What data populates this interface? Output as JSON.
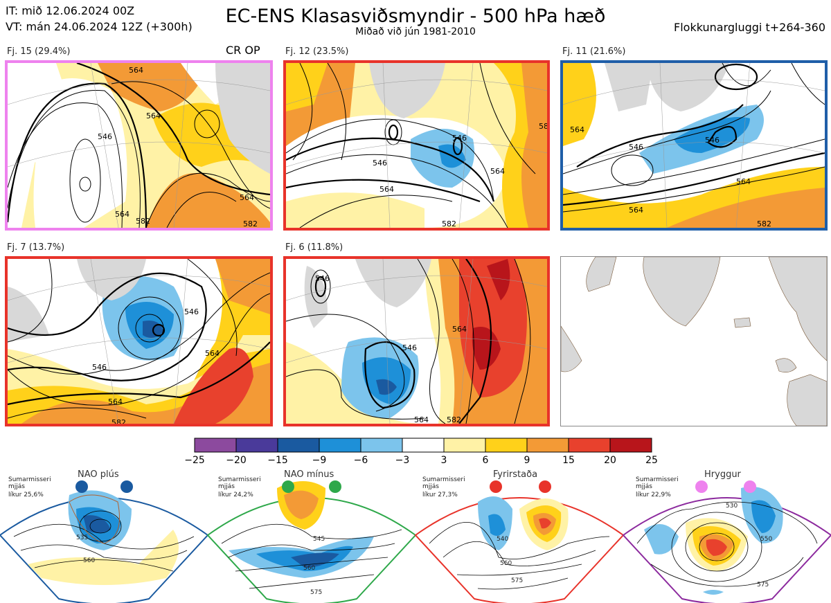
{
  "header": {
    "it_line": "IT: mið 12.06.2024 00Z",
    "vt_line": "VT: mán 24.06.2024 12Z  (+300h)",
    "title": "EC-ENS Klasasviðsmyndir - 500 hPa hæð",
    "subtitle": "Miðað við jún 1981-2010",
    "window": "Flokkunargluggi t+264-360"
  },
  "panels": [
    {
      "label": "Fj. 15 (29.4%)",
      "extra": "CR OP",
      "border": "#ee82ee",
      "contours": [
        "564",
        "546",
        "564",
        "564",
        "564",
        "582",
        "582"
      ]
    },
    {
      "label": "Fj. 12 (23.5%)",
      "extra": "",
      "border": "#e8332a",
      "contours": [
        "546",
        "546",
        "564",
        "564",
        "582",
        "582"
      ]
    },
    {
      "label": "Fj. 11 (21.6%)",
      "extra": "",
      "border": "#1f5ea8",
      "contours": [
        "546",
        "546",
        "564",
        "564",
        "564",
        "582"
      ]
    },
    {
      "label": "Fj. 7 (13.7%)",
      "extra": "",
      "border": "#e8332a",
      "contours": [
        "546",
        "546",
        "564",
        "564",
        "582"
      ]
    },
    {
      "label": "Fj. 6 (11.8%)",
      "extra": "",
      "border": "#e8332a",
      "contours": [
        "546",
        "546",
        "564",
        "564",
        "582"
      ]
    }
  ],
  "colorbar": {
    "ticks": [
      "−25",
      "−20",
      "−15",
      "−9",
      "−6",
      "−3",
      "3",
      "6",
      "9",
      "15",
      "20",
      "25"
    ],
    "colors": [
      "#8c4a9e",
      "#4a3a9a",
      "#1a5aa0",
      "#1e90d8",
      "#7cc4ec",
      "#ffffff",
      "#fff2a6",
      "#ffd11a",
      "#f39a36",
      "#e8412d",
      "#b8151b"
    ]
  },
  "regimes": [
    {
      "name": "NAO plús",
      "note1": "Sumarmisseri",
      "note2": "mjjás",
      "note3": "líkur 25,6%",
      "dot_color": "#1a5aa0",
      "border": "#1a5aa0",
      "contours": [
        "535",
        "560"
      ]
    },
    {
      "name": "NAO mínus",
      "note1": "Sumarmisseri",
      "note2": "mjjás",
      "note3": "líkur 24,2%",
      "dot_color": "#2ea84a",
      "border": "#2ea84a",
      "contours": [
        "545",
        "560",
        "575"
      ]
    },
    {
      "name": "Fyrirstaða",
      "note1": "Sumarmisseri",
      "note2": "mjjás",
      "note3": "líkur 27,3%",
      "dot_color": "#e8332a",
      "border": "#e8332a",
      "contours": [
        "540",
        "560",
        "575"
      ]
    },
    {
      "name": "Hryggur",
      "note1": "Sumarmisseri",
      "note2": "mjjás",
      "note3": "líkur 22,9%",
      "dot_color": "#ee82ee",
      "border": "#8c2a9e",
      "contours": [
        "530",
        "550",
        "575"
      ]
    }
  ]
}
